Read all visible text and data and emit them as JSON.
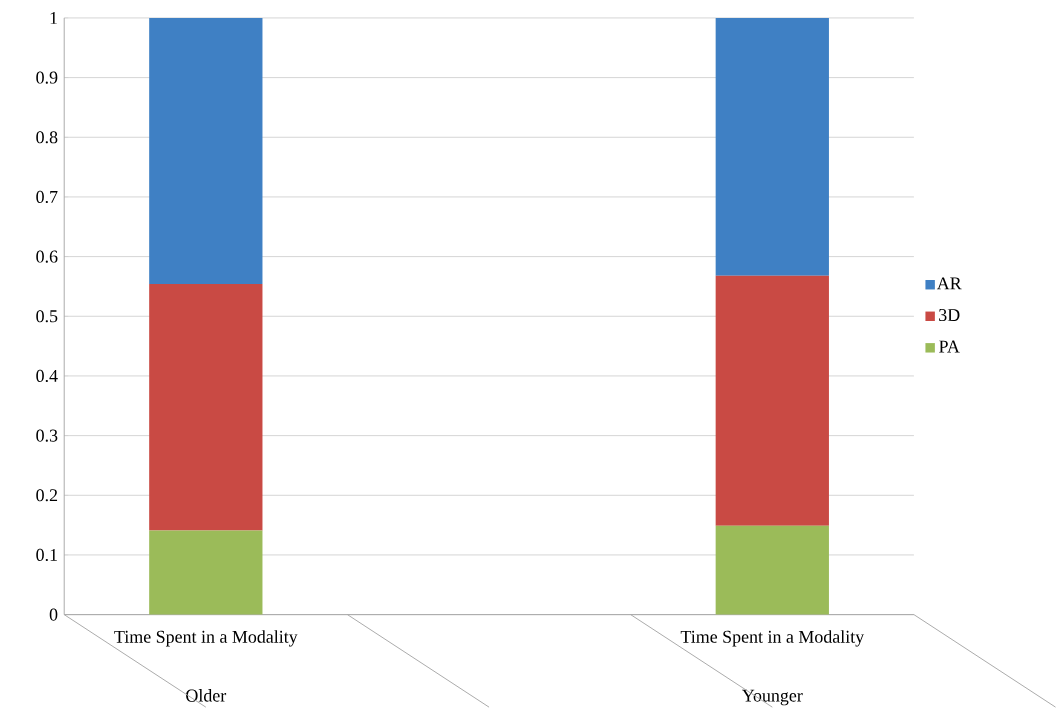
{
  "chart_data": {
    "type": "bar",
    "stacked": true,
    "categories": [
      "Time Spent in a Modality",
      null,
      "Time Spent in a Modality"
    ],
    "annotations": [
      "Older",
      "Younger"
    ],
    "series": [
      {
        "name": "PA",
        "color": "#9bbb59",
        "values": [
          0.141,
          null,
          0.149
        ]
      },
      {
        "name": "3D",
        "color": "#c94a44",
        "values": [
          0.413,
          null,
          0.419
        ]
      },
      {
        "name": "AR",
        "color": "#3f80c4",
        "values": [
          0.446,
          null,
          0.432
        ]
      }
    ],
    "ylim": [
      0,
      1
    ],
    "yticks": [
      0,
      0.1,
      0.2,
      0.3,
      0.4,
      0.5,
      0.6,
      0.7,
      0.8,
      0.9,
      1
    ],
    "grid": "y",
    "legend": "right"
  }
}
